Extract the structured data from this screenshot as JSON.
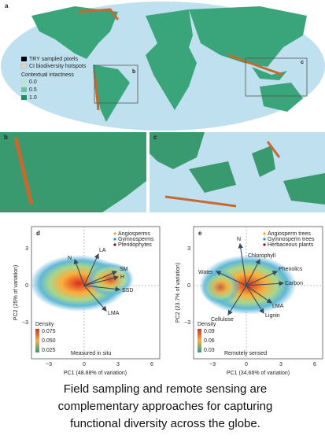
{
  "panel_a": {
    "label": "a",
    "legend": [
      "TRY sampled pixels",
      "CI biodiversity hotspots"
    ],
    "intactness_title": "Contextual intactness",
    "intactness_levels": [
      "0.0",
      "0.5",
      "1.0"
    ],
    "insets": [
      "b",
      "c"
    ]
  },
  "panel_b": {
    "label": "b"
  },
  "panel_c": {
    "label": "c"
  },
  "panel_d": {
    "label": "d",
    "legend": [
      "Angiosperms",
      "Gymnosperms",
      "Pteridophytes"
    ],
    "vectors": [
      "N",
      "LA",
      "SM",
      "H",
      "SSD",
      "LMA"
    ],
    "density_title": "Density",
    "density_levels": [
      "0.075",
      "0.050",
      "0.025"
    ],
    "note": "Measured in situ",
    "xlabel": "PC1 (48.88% of variation)",
    "ylabel": "PC2 (25% of variation)",
    "xticks": [
      "−3",
      "0",
      "3",
      "6"
    ],
    "yticks": [
      "3",
      "0",
      "−3"
    ]
  },
  "panel_e": {
    "label": "e",
    "legend": [
      "Angiosperm trees",
      "Gymnosperm trees",
      "Herbaceous plants"
    ],
    "vectors": [
      "N",
      "Chlorophyll",
      "Phenolics",
      "Carbon",
      "Water",
      "LMA",
      "Lignin",
      "Cellulose"
    ],
    "density_title": "Density",
    "density_levels": [
      "0.09",
      "0.06",
      "0.03"
    ],
    "note": "Remotely sensed",
    "xlabel": "PC1 (34.66% of variation)",
    "ylabel": "PC2 (23.7% of variation)",
    "xticks": [
      "−3",
      "0",
      "3",
      "6"
    ],
    "yticks": [
      "3",
      "0",
      "−3"
    ]
  },
  "caption": "Field sampling and remote sensing are complementary approaches for capturing functional diversity across the globe."
}
